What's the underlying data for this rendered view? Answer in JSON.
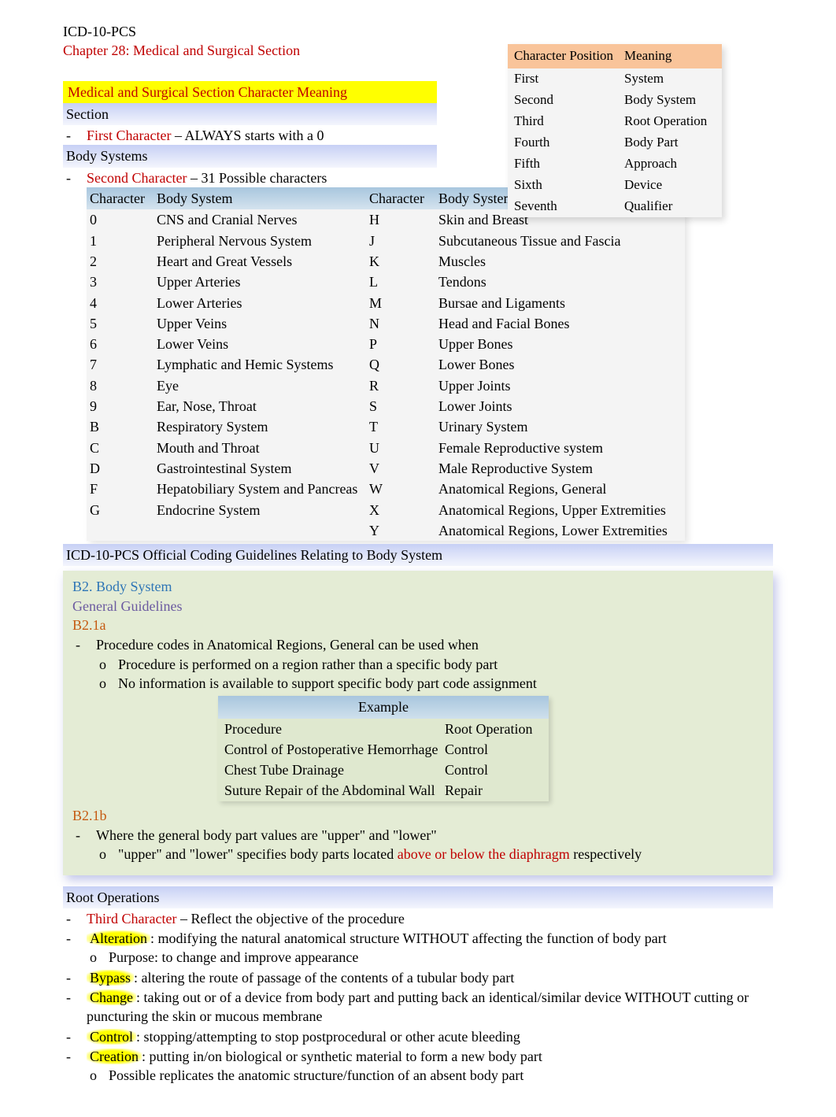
{
  "header": {
    "title": "ICD-10-PCS",
    "chapter": "Chapter 28: Medical and Surgical Section"
  },
  "section_heading": "Medical and Surgical Section Character Meaning",
  "section_label": "Section",
  "first_char": {
    "label": "First Character",
    "desc": " – ALWAYS starts with a 0"
  },
  "body_systems_label": "Body Systems",
  "second_char": {
    "label": "Second Character",
    "desc": " – 31 Possible characters"
  },
  "char_meaning_table": {
    "headers": [
      "Character Position",
      "Meaning"
    ],
    "rows": [
      [
        "First",
        "System"
      ],
      [
        "Second",
        "Body System"
      ],
      [
        "Third",
        "Root Operation"
      ],
      [
        "Fourth",
        "Body Part"
      ],
      [
        "Fifth",
        "Approach"
      ],
      [
        "Sixth",
        "Device"
      ],
      [
        "Seventh",
        "Qualifier"
      ]
    ]
  },
  "bs_table": {
    "headers": [
      "Character",
      "Body System",
      "Character",
      "Body System"
    ],
    "rows": [
      [
        "0",
        "CNS and Cranial Nerves",
        "H",
        "Skin and Breast"
      ],
      [
        "1",
        "Peripheral Nervous System",
        "J",
        "Subcutaneous Tissue and Fascia"
      ],
      [
        "2",
        "Heart and Great Vessels",
        "K",
        "Muscles"
      ],
      [
        "3",
        "Upper Arteries",
        "L",
        "Tendons"
      ],
      [
        "4",
        "Lower Arteries",
        "M",
        "Bursae and Ligaments"
      ],
      [
        "5",
        "Upper Veins",
        "N",
        "Head and Facial Bones"
      ],
      [
        "6",
        "Lower Veins",
        "P",
        "Upper Bones"
      ],
      [
        "7",
        "Lymphatic and Hemic Systems",
        "Q",
        "Lower Bones"
      ],
      [
        "8",
        "Eye",
        "R",
        "Upper Joints"
      ],
      [
        "9",
        "Ear, Nose, Throat",
        "S",
        "Lower Joints"
      ],
      [
        "B",
        "Respiratory System",
        "T",
        "Urinary System"
      ],
      [
        "C",
        "Mouth and Throat",
        "U",
        "Female Reproductive system"
      ],
      [
        "D",
        "Gastrointestinal System",
        "V",
        "Male Reproductive System"
      ],
      [
        "F",
        "Hepatobiliary System and Pancreas",
        "W",
        "Anatomical Regions, General"
      ],
      [
        "G",
        "Endocrine System",
        "X",
        "Anatomical Regions, Upper Extremities"
      ],
      [
        "",
        "",
        "Y",
        "Anatomical Regions, Lower Extremities"
      ]
    ]
  },
  "guidelines_heading": "ICD-10-PCS Official Coding Guidelines Relating to Body System",
  "guidelines": {
    "b2": "B2. Body System",
    "general": "General Guidelines",
    "b21a": "B2.1a",
    "line1_pre": "Procedure codes in ",
    "line1_mid": "Anatomical Regions, General",
    "line1_post": " can be used when",
    "sub1": "Procedure is performed on a region rather than a specific body part",
    "sub2": "No information is available to support specific body part code assignment",
    "example_label": "Example",
    "example_headers": [
      "Procedure",
      "Root Operation"
    ],
    "example_rows": [
      [
        "Control of Postoperative Hemorrhage",
        "Control"
      ],
      [
        "Chest Tube Drainage",
        "Control"
      ],
      [
        "Suture Repair of the Abdominal Wall",
        "Repair"
      ]
    ],
    "b21b": "B2.1b",
    "b21b_line": "Where the general body part values are  \"upper\" and \"lower\"",
    "b21b_sub_pre": "\"upper\" and \"lower\" specifies body parts located ",
    "b21b_sub_red": "above or below the diaphragm",
    "b21b_sub_post": "  respectively"
  },
  "root_ops": {
    "heading": "Root Operations",
    "third_char": "Third Character",
    "third_char_desc": " – Reflect the objective of the procedure",
    "alteration": "Alteration",
    "alteration_desc": ": modifying the natural anatomical structure WITHOUT affecting the function of body part",
    "alteration_sub": "Purpose: to change and improve appearance",
    "bypass": "Bypass",
    "bypass_desc": ": altering the route of passage of the contents of a tubular body part",
    "change": "Change",
    "change_desc": ": taking out or of  a device from body part and putting back an identical/similar device WITHOUT cutting or puncturing the skin or mucous membrane",
    "control": "Control",
    "control_desc": ": stopping/attempting to stop postprocedural or other acute    bleeding",
    "creation": "Creation",
    "creation_desc": ": putting in/on biological or synthetic material  to form a new body part",
    "creation_sub": "Possible replicates the anatomic structure/function of an absent body part"
  }
}
